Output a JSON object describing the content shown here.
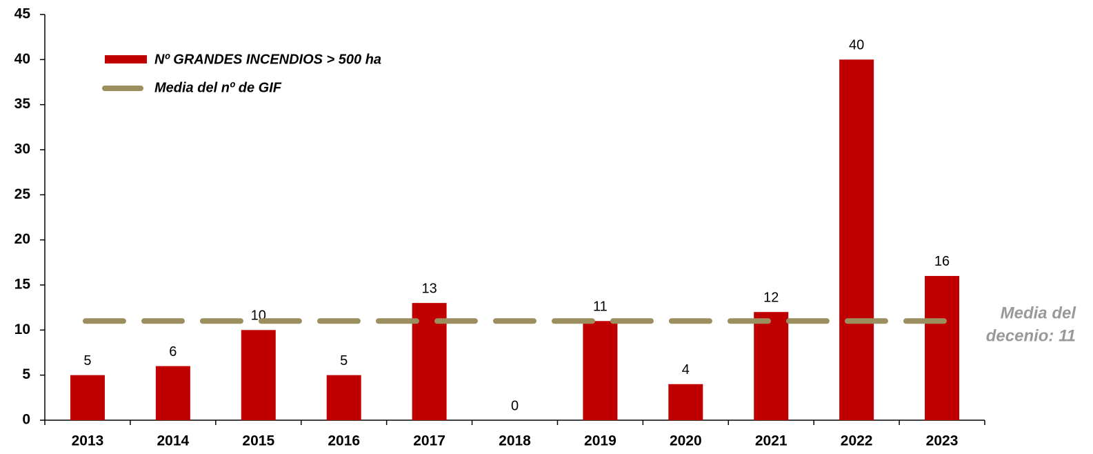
{
  "chart_data": {
    "type": "bar",
    "categories": [
      "2013",
      "2014",
      "2015",
      "2016",
      "2017",
      "2018",
      "2019",
      "2020",
      "2021",
      "2022",
      "2023"
    ],
    "series": [
      {
        "name": "Nº GRANDES INCENDIOS > 500 ha",
        "color": "#c00000",
        "values": [
          5,
          6,
          10,
          5,
          13,
          0,
          11,
          4,
          12,
          40,
          16
        ]
      }
    ],
    "mean": {
      "name": "Media del nº de GIF",
      "value": 11,
      "color": "#9c8f5f"
    },
    "annotation": [
      "Media del",
      "decenio: 11"
    ],
    "ylim": [
      0,
      45
    ],
    "yticks": [
      0,
      5,
      10,
      15,
      20,
      25,
      30,
      35,
      40,
      45
    ],
    "grid": false
  }
}
